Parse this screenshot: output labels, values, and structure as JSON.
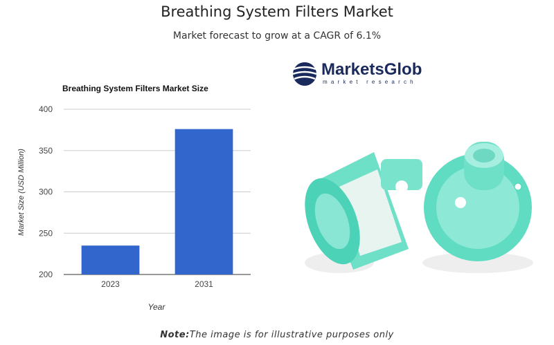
{
  "header": {
    "title": "Breathing System Filters Market",
    "subtitle": "Market forecast to grow at a CAGR of 6.1%"
  },
  "chart_data": {
    "type": "bar",
    "title": "Breathing System Filters Market Size",
    "x_label": "Year",
    "y_label": "Market Size (USD Million)",
    "categories": [
      "2023",
      "2031"
    ],
    "values": [
      235,
      376
    ],
    "color": "#3366cc",
    "ylim": [
      200,
      400
    ],
    "yticks": [
      200,
      250,
      300,
      350,
      400
    ],
    "grid": true
  },
  "logo": {
    "name": "MarketsGlob",
    "tagline": "market research"
  },
  "note": {
    "label": "Note:",
    "text": "The image is for illustrative purposes only"
  }
}
